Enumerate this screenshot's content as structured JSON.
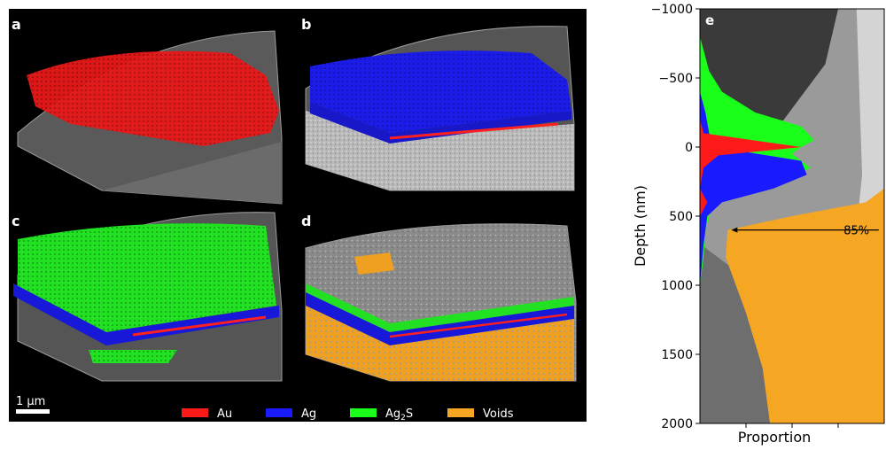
{
  "panels": [
    {
      "label": "a"
    },
    {
      "label": "b"
    },
    {
      "label": "c"
    },
    {
      "label": "d"
    }
  ],
  "scale_bar": {
    "label": "1 μm"
  },
  "legend": [
    {
      "label": "Au",
      "color": "#ff1a1a"
    },
    {
      "label": "Ag",
      "color": "#1a1aff"
    },
    {
      "label": "Ag",
      "sub": "2",
      "suffix": "S",
      "color": "#1aff1a"
    },
    {
      "label": "Voids",
      "color": "#f5a623"
    }
  ],
  "chart_data": {
    "type": "area",
    "panel_label": "e",
    "xlabel": "Proportion",
    "ylabel": "Depth (nm)",
    "ylim": [
      -1000,
      2000
    ],
    "yticks": [
      -1000,
      -500,
      0,
      500,
      1000,
      1500,
      2000
    ],
    "annotation": {
      "text": "85%",
      "depth": 600
    },
    "layers": [
      {
        "name": "Au",
        "color": "#ff1a1a",
        "points": [
          [
            -1000,
            0
          ],
          [
            -200,
            0
          ],
          [
            -100,
            0.02
          ],
          [
            0,
            0.55
          ],
          [
            60,
            0.1
          ],
          [
            150,
            0.02
          ],
          [
            300,
            0
          ],
          [
            400,
            0.04
          ],
          [
            500,
            0
          ],
          [
            2000,
            0
          ]
        ]
      },
      {
        "name": "Ag",
        "color": "#1a1aff",
        "points": [
          [
            -1000,
            0
          ],
          [
            -400,
            0
          ],
          [
            -250,
            0.03
          ],
          [
            -100,
            0.05
          ],
          [
            0,
            0.08
          ],
          [
            100,
            0.55
          ],
          [
            200,
            0.58
          ],
          [
            300,
            0.4
          ],
          [
            400,
            0.12
          ],
          [
            500,
            0.04
          ],
          [
            700,
            0.02
          ],
          [
            1000,
            0
          ],
          [
            2000,
            0
          ]
        ]
      },
      {
        "name": "Ag2S",
        "color": "#1aff1a",
        "points": [
          [
            -1000,
            0
          ],
          [
            -800,
            0
          ],
          [
            -700,
            0.02
          ],
          [
            -550,
            0.05
          ],
          [
            -400,
            0.12
          ],
          [
            -250,
            0.3
          ],
          [
            -150,
            0.55
          ],
          [
            -50,
            0.62
          ],
          [
            0,
            0.55
          ],
          [
            50,
            0.5
          ],
          [
            150,
            0.6
          ],
          [
            250,
            0.45
          ],
          [
            350,
            0.12
          ],
          [
            450,
            0.06
          ],
          [
            600,
            0.03
          ],
          [
            800,
            0.02
          ],
          [
            1000,
            0
          ],
          [
            2000,
            0
          ]
        ]
      },
      {
        "name": "Voids",
        "color": "#f5a623",
        "points": [
          [
            -1000,
            0
          ],
          [
            300,
            0
          ],
          [
            400,
            0.1
          ],
          [
            500,
            0.5
          ],
          [
            600,
            0.85
          ],
          [
            800,
            0.86
          ],
          [
            1200,
            0.75
          ],
          [
            1600,
            0.66
          ],
          [
            2000,
            0.62
          ]
        ]
      }
    ]
  }
}
